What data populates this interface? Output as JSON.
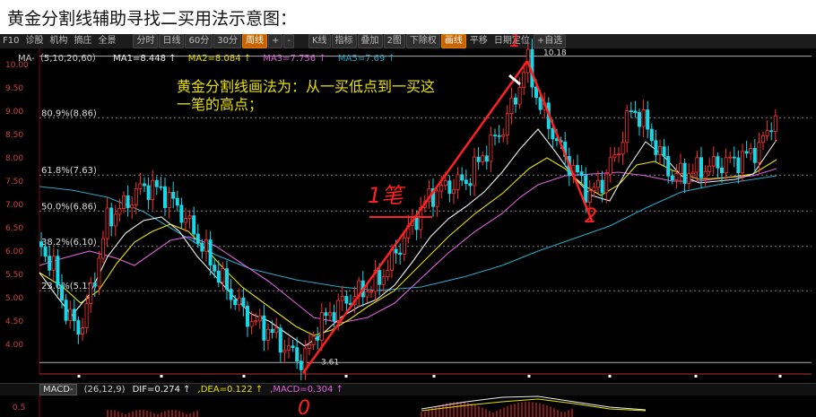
{
  "caption": "黄金分割线辅助寻找二买用法示意图：",
  "toolbar": {
    "items": [
      "F10",
      "诊股",
      "机构",
      "摘庄",
      "全景",
      "分时",
      "日线",
      "60分",
      "30分",
      "周线",
      "+",
      "-",
      "K线",
      "指标",
      "叠加",
      "2图",
      "下除权",
      "画线",
      "平移",
      "日期定位",
      "+自选"
    ],
    "active": [
      "周线",
      "画线"
    ]
  },
  "ma_legend": {
    "label": "MA-（5,10,20,60）",
    "ma1": "MA1=8.448 ↑",
    "ma2": "MA2=8.084 ↑",
    "ma3": "MA3=7.756 ↑",
    "ma5": "MA5=7.69 ↑",
    "colors": {
      "label": "#cccccc",
      "ma1": "#f0f0f0",
      "ma2": "#e8e000",
      "ma3": "#e060e0",
      "ma5": "#28a8c8"
    }
  },
  "annotation": {
    "line1": "黄金分割线画法为：从一买低点到一买这",
    "line2": "一笔的高点；",
    "color": "#e8e000"
  },
  "fib_levels": [
    {
      "label": "80.9%(8.86)",
      "value": 8.86
    },
    {
      "label": "61.8%(7.63)",
      "value": 7.63
    },
    {
      "label": "50.0%(6.86)",
      "value": 6.86
    },
    {
      "label": "38.2%(6.10)",
      "value": 6.1
    },
    {
      "label": "23.6%(5.15)",
      "value": 5.15
    }
  ],
  "price_axis": [
    "10.00",
    "9.50",
    "9.00",
    "8.50",
    "8.00",
    "7.50",
    "7.00",
    "6.50",
    "6.00",
    "5.50",
    "5.00",
    "4.50",
    "4.00"
  ],
  "high_label": "10.18",
  "low_label": "3.61",
  "handwriting": {
    "zero": "0",
    "one": "1",
    "two": "2",
    "upstroke": "1笔"
  },
  "macd": {
    "tag": "MACD-",
    "params": "(26,12,9)",
    "dif": "DIF=0.274 ↑",
    "dea": ",DEA=0.122 ↑",
    "macd": ",MACD=0.304 ↑",
    "left_value": "0.5"
  }
}
